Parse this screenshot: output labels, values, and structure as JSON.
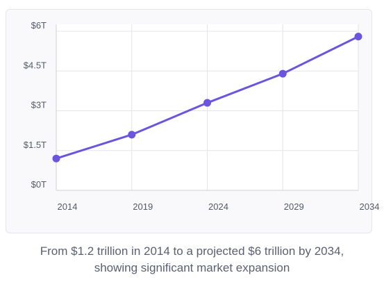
{
  "chart_data": {
    "type": "line",
    "categories": [
      "2014",
      "2019",
      "2024",
      "2029",
      "2034"
    ],
    "series": [
      {
        "values": [
          1.2,
          2.1,
          3.3,
          4.4,
          5.8
        ]
      }
    ],
    "ylim": [
      0,
      6
    ],
    "y_ticks": [
      0,
      1.5,
      3,
      4.5,
      6
    ],
    "y_tick_labels": [
      "$0T",
      "$1.5T",
      "$3T",
      "$4.5T",
      "$6T"
    ],
    "grid": true,
    "line_color": "#6b54e0",
    "grid_color": "#e4e4ea",
    "axis_label_color": "#555a66"
  },
  "caption": {
    "line1": "From $1.2 trillion in 2014 to a projected $6 trillion by 2034,",
    "line2": "showing significant market expansion"
  }
}
